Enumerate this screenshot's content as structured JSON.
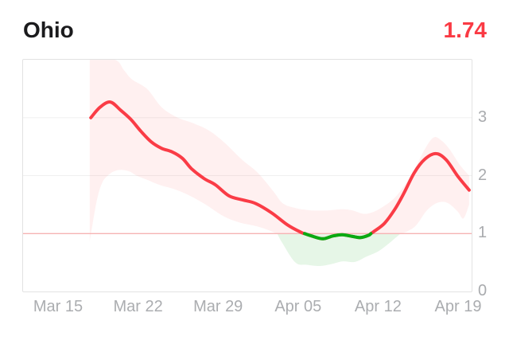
{
  "header": {
    "title": "Ohio",
    "value": "1.74"
  },
  "colors": {
    "line_red": "#fa3c46",
    "line_green": "#09ab12",
    "band_red": "rgba(250,60,70,0.08)",
    "band_green": "rgba(9,171,18,0.10)",
    "reference_line": "#f5b3b3",
    "gridline": "#f0f0f0",
    "value_text": "#fa3a44",
    "title_text": "#1b1b1d",
    "axis_text": "#abadb0"
  },
  "chart_data": {
    "type": "line",
    "title": "Ohio",
    "current_value": 1.74,
    "x_unit": "days since Mar 15",
    "x_tick_days": [
      0,
      7,
      14,
      21,
      28,
      35
    ],
    "x_tick_labels": [
      "Mar 15",
      "Mar 22",
      "Mar 29",
      "Apr 05",
      "Apr 12",
      "Apr 19"
    ],
    "y_ticks": [
      0,
      1,
      2,
      3
    ],
    "ylim": [
      0,
      4
    ],
    "grid_y_values": [
      2,
      3
    ],
    "reference_line": 1.0,
    "legend": "none",
    "series": [
      {
        "name": "rt-mean",
        "x": [
          2.8,
          3.6,
          4.5,
          5.4,
          6.3,
          7.2,
          8.1,
          9.0,
          9.9,
          10.8,
          11.6,
          12.7,
          13.7,
          14.9,
          16.1,
          17.2,
          18.6,
          20.0,
          21.2,
          21.5,
          22.1,
          23.1,
          24.0,
          24.8,
          25.7,
          26.4,
          27.1,
          27.3,
          27.6,
          28.5,
          29.4,
          30.2,
          31.1,
          32.0,
          33.0,
          33.9,
          34.9,
          35.9
        ],
        "values": [
          3.0,
          3.18,
          3.27,
          3.13,
          2.97,
          2.76,
          2.58,
          2.47,
          2.41,
          2.3,
          2.12,
          1.95,
          1.84,
          1.65,
          1.58,
          1.52,
          1.36,
          1.15,
          1.02,
          1.0,
          0.96,
          0.91,
          0.96,
          0.98,
          0.95,
          0.93,
          0.97,
          1.0,
          1.04,
          1.18,
          1.42,
          1.7,
          2.05,
          2.28,
          2.38,
          2.27,
          1.99,
          1.75
        ]
      },
      {
        "name": "ci-upper",
        "x": [
          2.7,
          4.9,
          5.7,
          6.4,
          7.7,
          9.0,
          10.4,
          11.8,
          13.2,
          14.6,
          16.0,
          17.4,
          18.8,
          19.6,
          20.7,
          22.1,
          23.5,
          24.8,
          25.7,
          26.7,
          27.6,
          28.5,
          29.4,
          30.2,
          31.1,
          32.0,
          32.8,
          33.5,
          34.2,
          35.1,
          35.9
        ],
        "values": [
          4.0,
          4.0,
          3.82,
          3.66,
          3.5,
          3.18,
          3.0,
          2.9,
          2.77,
          2.55,
          2.28,
          2.05,
          1.72,
          1.52,
          1.44,
          1.4,
          1.4,
          1.42,
          1.4,
          1.34,
          1.38,
          1.48,
          1.62,
          1.82,
          2.1,
          2.45,
          2.66,
          2.6,
          2.45,
          2.18,
          2.0
        ]
      },
      {
        "name": "ci-lower",
        "x": [
          2.7,
          3.3,
          3.8,
          4.4,
          4.9,
          5.5,
          6.2,
          6.8,
          7.7,
          8.8,
          10.2,
          11.6,
          13.0,
          14.4,
          15.8,
          17.2,
          18.2,
          19.1,
          19.6,
          20.7,
          21.7,
          22.8,
          23.8,
          24.8,
          25.9,
          26.9,
          28.0,
          29.0,
          29.9,
          30.6,
          31.3,
          32.2,
          33.1,
          34.0,
          34.9,
          35.4,
          35.9
        ],
        "values": [
          0.86,
          1.55,
          1.88,
          2.02,
          2.08,
          2.1,
          2.07,
          2.0,
          1.93,
          1.84,
          1.76,
          1.64,
          1.48,
          1.3,
          1.19,
          1.13,
          1.07,
          1.0,
          0.82,
          0.5,
          0.46,
          0.44,
          0.47,
          0.52,
          0.51,
          0.6,
          0.7,
          0.85,
          1.0,
          1.05,
          1.15,
          1.4,
          1.53,
          1.53,
          1.38,
          1.26,
          1.5
        ]
      }
    ],
    "green_band_days": [
      19.1,
      29.9
    ],
    "green_line_days": [
      21.5,
      27.3
    ]
  }
}
